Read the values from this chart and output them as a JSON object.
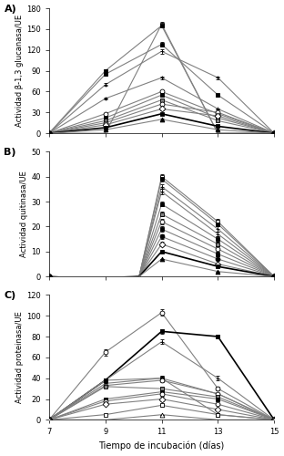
{
  "x_days": [
    7,
    9,
    11,
    13,
    15
  ],
  "panel_A": {
    "ylabel": "Actividad β-1,3 glucanasa/UE",
    "ylim": [
      0,
      180
    ],
    "yticks": [
      0,
      30,
      60,
      90,
      120,
      150,
      180
    ],
    "series": [
      {
        "marker": "s",
        "mfc": "white",
        "mec": "black",
        "lc": "gray",
        "lw": 0.8,
        "values": [
          0,
          0,
          157,
          0,
          0
        ],
        "err": [
          0,
          0,
          3,
          0,
          0
        ]
      },
      {
        "marker": "s",
        "mfc": "black",
        "mec": "black",
        "lc": "gray",
        "lw": 0.8,
        "values": [
          0,
          90,
          155,
          0,
          0
        ],
        "err": [
          0,
          2,
          3,
          0,
          0
        ]
      },
      {
        "marker": "s",
        "mfc": "black",
        "mec": "black",
        "lc": "gray",
        "lw": 0.8,
        "values": [
          0,
          85,
          128,
          55,
          0
        ],
        "err": [
          0,
          2,
          3,
          2,
          0
        ]
      },
      {
        "marker": "+",
        "mfc": "black",
        "mec": "black",
        "lc": "gray",
        "lw": 0.8,
        "values": [
          0,
          70,
          118,
          80,
          0
        ],
        "err": [
          0,
          2,
          3,
          2,
          0
        ]
      },
      {
        "marker": "+",
        "mfc": "black",
        "mec": "black",
        "lc": "gray",
        "lw": 0.8,
        "values": [
          0,
          50,
          80,
          35,
          0
        ],
        "err": [
          0,
          1,
          2,
          1,
          0
        ]
      },
      {
        "marker": "o",
        "mfc": "white",
        "mec": "black",
        "lc": "gray",
        "lw": 0.8,
        "values": [
          0,
          28,
          60,
          28,
          0
        ],
        "err": [
          0,
          1,
          2,
          1,
          0
        ]
      },
      {
        "marker": "s",
        "mfc": "black",
        "mec": "black",
        "lc": "gray",
        "lw": 0.8,
        "values": [
          0,
          22,
          55,
          22,
          0
        ],
        "err": [
          0,
          1,
          2,
          1,
          0
        ]
      },
      {
        "marker": "s",
        "mfc": "gray",
        "mec": "black",
        "lc": "gray",
        "lw": 0.8,
        "values": [
          0,
          18,
          48,
          18,
          0
        ],
        "err": [
          0,
          1,
          2,
          1,
          0
        ]
      },
      {
        "marker": "o",
        "mfc": "white",
        "mec": "black",
        "lc": "gray",
        "lw": 0.8,
        "values": [
          0,
          15,
          42,
          30,
          0
        ],
        "err": [
          0,
          1,
          2,
          1,
          0
        ]
      },
      {
        "marker": "D",
        "mfc": "white",
        "mec": "black",
        "lc": "gray",
        "lw": 0.8,
        "values": [
          0,
          12,
          35,
          25,
          0
        ],
        "err": [
          0,
          1,
          2,
          1,
          0
        ]
      },
      {
        "marker": "s",
        "mfc": "black",
        "mec": "black",
        "lc": "black",
        "lw": 1.2,
        "values": [
          0,
          8,
          28,
          10,
          0
        ],
        "err": [
          0,
          0,
          1,
          0,
          0
        ]
      },
      {
        "marker": "^",
        "mfc": "black",
        "mec": "black",
        "lc": "gray",
        "lw": 0.8,
        "values": [
          0,
          5,
          20,
          5,
          0
        ],
        "err": [
          0,
          0,
          1,
          0,
          0
        ]
      }
    ]
  },
  "panel_B": {
    "ylabel": "Actividad quitinasa/UE",
    "ylim": [
      0,
      50
    ],
    "yticks": [
      0,
      10,
      20,
      30,
      40,
      50
    ],
    "neg_dip": -2.5,
    "series": [
      {
        "marker": "s",
        "mfc": "white",
        "mec": "black",
        "lc": "gray",
        "lw": 0.8,
        "values": [
          0,
          0,
          40,
          22,
          0
        ],
        "err": [
          0,
          0,
          1,
          1,
          0
        ]
      },
      {
        "marker": "s",
        "mfc": "black",
        "mec": "black",
        "lc": "gray",
        "lw": 0.8,
        "values": [
          0,
          0,
          39,
          21,
          0
        ],
        "err": [
          0,
          0,
          1,
          1,
          0
        ]
      },
      {
        "marker": "+",
        "mfc": "black",
        "mec": "black",
        "lc": "gray",
        "lw": 0.8,
        "values": [
          0,
          0,
          36,
          19,
          0
        ],
        "err": [
          0,
          0,
          1,
          1,
          0
        ]
      },
      {
        "marker": "+",
        "mfc": "black",
        "mec": "black",
        "lc": "gray",
        "lw": 0.8,
        "values": [
          0,
          0,
          34,
          17,
          0
        ],
        "err": [
          0,
          0,
          1,
          1,
          0
        ]
      },
      {
        "marker": "s",
        "mfc": "black",
        "mec": "black",
        "lc": "gray",
        "lw": 0.8,
        "values": [
          0,
          0,
          29,
          15,
          0
        ],
        "err": [
          0,
          0,
          1,
          1,
          0
        ]
      },
      {
        "marker": "s",
        "mfc": "gray",
        "mec": "black",
        "lc": "gray",
        "lw": 0.8,
        "values": [
          0,
          0,
          25,
          13,
          0
        ],
        "err": [
          0,
          0,
          1,
          1,
          0
        ]
      },
      {
        "marker": "o",
        "mfc": "white",
        "mec": "black",
        "lc": "gray",
        "lw": 0.8,
        "values": [
          0,
          0,
          22,
          11,
          0
        ],
        "err": [
          0,
          0,
          1,
          1,
          0
        ]
      },
      {
        "marker": "s",
        "mfc": "black",
        "mec": "black",
        "lc": "gray",
        "lw": 0.8,
        "values": [
          0,
          0,
          19,
          9,
          0
        ],
        "err": [
          0,
          0,
          1,
          1,
          0
        ]
      },
      {
        "marker": "o",
        "mfc": "black",
        "mec": "black",
        "lc": "gray",
        "lw": 0.8,
        "values": [
          0,
          0,
          16,
          7,
          0
        ],
        "err": [
          0,
          0,
          1,
          0,
          0
        ]
      },
      {
        "marker": "D",
        "mfc": "white",
        "mec": "black",
        "lc": "gray",
        "lw": 0.8,
        "values": [
          0,
          0,
          13,
          5,
          0
        ],
        "err": [
          0,
          0,
          1,
          0,
          0
        ]
      },
      {
        "marker": "s",
        "mfc": "black",
        "mec": "black",
        "lc": "black",
        "lw": 1.2,
        "values": [
          0,
          0,
          10,
          4,
          0
        ],
        "err": [
          0,
          0,
          0,
          0,
          0
        ]
      },
      {
        "marker": "^",
        "mfc": "black",
        "mec": "black",
        "lc": "gray",
        "lw": 0.8,
        "values": [
          0,
          0,
          7,
          2,
          0
        ],
        "err": [
          0,
          0,
          0,
          0,
          0
        ]
      }
    ]
  },
  "panel_C": {
    "ylabel": "Actividad proteinasa/UE",
    "ylim": [
      0,
      120
    ],
    "yticks": [
      0,
      20,
      40,
      60,
      80,
      100,
      120
    ],
    "series": [
      {
        "marker": "o",
        "mfc": "white",
        "mec": "black",
        "lc": "gray",
        "lw": 0.8,
        "values": [
          0,
          65,
          103,
          30,
          0
        ],
        "err": [
          0,
          3,
          3,
          2,
          0
        ]
      },
      {
        "marker": "s",
        "mfc": "black",
        "mec": "black",
        "lc": "black",
        "lw": 1.2,
        "values": [
          0,
          38,
          85,
          80,
          0
        ],
        "err": [
          0,
          2,
          2,
          2,
          0
        ]
      },
      {
        "marker": "+",
        "mfc": "black",
        "mec": "black",
        "lc": "gray",
        "lw": 0.8,
        "values": [
          0,
          38,
          75,
          40,
          0
        ],
        "err": [
          0,
          2,
          2,
          2,
          0
        ]
      },
      {
        "marker": "s",
        "mfc": "black",
        "mec": "black",
        "lc": "gray",
        "lw": 0.8,
        "values": [
          0,
          38,
          40,
          5,
          0
        ],
        "err": [
          0,
          2,
          2,
          1,
          0
        ]
      },
      {
        "marker": "+",
        "mfc": "black",
        "mec": "black",
        "lc": "gray",
        "lw": 0.8,
        "values": [
          0,
          35,
          40,
          25,
          0
        ],
        "err": [
          0,
          2,
          2,
          1,
          0
        ]
      },
      {
        "marker": "o",
        "mfc": "white",
        "mec": "black",
        "lc": "gray",
        "lw": 0.8,
        "values": [
          0,
          33,
          38,
          25,
          0
        ],
        "err": [
          0,
          2,
          2,
          1,
          0
        ]
      },
      {
        "marker": "s",
        "mfc": "gray",
        "mec": "black",
        "lc": "gray",
        "lw": 0.8,
        "values": [
          0,
          32,
          30,
          22,
          0
        ],
        "err": [
          0,
          1,
          2,
          1,
          0
        ]
      },
      {
        "marker": "s",
        "mfc": "black",
        "mec": "black",
        "lc": "gray",
        "lw": 0.8,
        "values": [
          0,
          20,
          27,
          20,
          0
        ],
        "err": [
          0,
          1,
          2,
          1,
          0
        ]
      },
      {
        "marker": "o",
        "mfc": "white",
        "mec": "black",
        "lc": "gray",
        "lw": 0.8,
        "values": [
          0,
          18,
          25,
          15,
          0
        ],
        "err": [
          0,
          1,
          2,
          1,
          0
        ]
      },
      {
        "marker": "D",
        "mfc": "white",
        "mec": "black",
        "lc": "gray",
        "lw": 0.8,
        "values": [
          0,
          15,
          20,
          10,
          0
        ],
        "err": [
          0,
          1,
          2,
          1,
          0
        ]
      },
      {
        "marker": "s",
        "mfc": "white",
        "mec": "black",
        "lc": "gray",
        "lw": 0.8,
        "values": [
          0,
          5,
          14,
          5,
          0
        ],
        "err": [
          0,
          0,
          1,
          0,
          0
        ]
      },
      {
        "marker": "^",
        "mfc": "white",
        "mec": "black",
        "lc": "gray",
        "lw": 0.8,
        "values": [
          0,
          0,
          5,
          0,
          0
        ],
        "err": [
          0,
          0,
          0,
          0,
          0
        ]
      }
    ]
  },
  "xlabel": "Tiempo de incubación (días)",
  "xticks": [
    7,
    9,
    11,
    13,
    15
  ],
  "panel_labels": [
    "A)",
    "B)",
    "C)"
  ]
}
